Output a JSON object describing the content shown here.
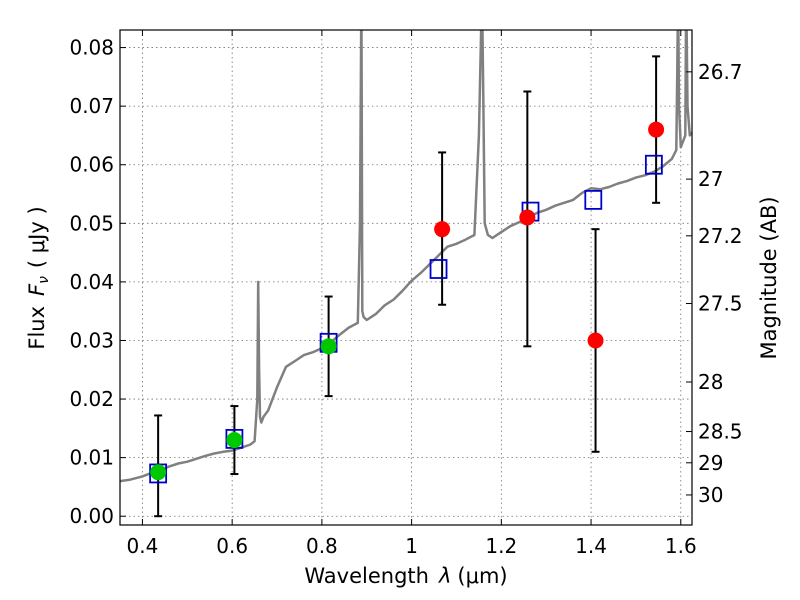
{
  "chart_data": {
    "type": "scatter",
    "xlabel_text": "Wavelength",
    "xlabel_symbol": "λ",
    "xlabel_unit": "(μm)",
    "ylabel_text": "Flux",
    "ylabel_symbol": "F",
    "ylabel_subscript": "ν",
    "ylabel_unit": "( μJy )",
    "y2label": "Magnitude (AB)",
    "xlim": [
      0.35,
      1.625
    ],
    "ylim": [
      -0.0015,
      0.083
    ],
    "grid": true,
    "x_ticks": [
      0.4,
      0.6,
      0.8,
      1.0,
      1.2,
      1.4,
      1.6
    ],
    "x_tick_labels": [
      "0.4",
      "0.6",
      "0.8",
      "1",
      "1.2",
      "1.4",
      "1.6"
    ],
    "y_ticks": [
      0.0,
      0.01,
      0.02,
      0.03,
      0.04,
      0.05,
      0.06,
      0.07,
      0.08
    ],
    "y_tick_labels": [
      "0.00",
      "0.01",
      "0.02",
      "0.03",
      "0.04",
      "0.05",
      "0.06",
      "0.07",
      "0.08"
    ],
    "y2_ticks": [
      {
        "label": "26.7",
        "mag": 26.7
      },
      {
        "label": "27",
        "mag": 27.0
      },
      {
        "label": "27.2",
        "mag": 27.2
      },
      {
        "label": "27.5",
        "mag": 27.5
      },
      {
        "label": "28",
        "mag": 28.0
      },
      {
        "label": "28.5",
        "mag": 28.5
      },
      {
        "label": "29",
        "mag": 29.0
      },
      {
        "label": "30",
        "mag": 30.0
      }
    ],
    "colors": {
      "spectrum": "#808080",
      "detection": "#00c800",
      "upper": "#ff0000",
      "model": "#0000cc",
      "errorbar": "#000000"
    },
    "series": [
      {
        "marker": "green-circle",
        "x": [
          0.435,
          0.605,
          0.815
        ],
        "y": [
          0.0075,
          0.013,
          0.029
        ],
        "err_low": [
          0.0075,
          0.0058,
          0.0085
        ],
        "err_high": [
          0.0097,
          0.0058,
          0.0085
        ]
      },
      {
        "marker": "red-circle",
        "x": [
          1.068,
          1.258,
          1.41,
          1.545
        ],
        "y": [
          0.049,
          0.051,
          0.03,
          0.066
        ],
        "err_low": [
          0.0129,
          0.022,
          0.019,
          0.0125
        ],
        "err_high": [
          0.0131,
          0.0215,
          0.019,
          0.0125
        ]
      },
      {
        "marker": "blue-open-square",
        "x": [
          0.435,
          0.605,
          0.815,
          1.06,
          1.265,
          1.405,
          1.54
        ],
        "y": [
          0.0073,
          0.0132,
          0.0296,
          0.0422,
          0.052,
          0.054,
          0.06
        ]
      },
      {
        "marker": "gray-line",
        "x": [
          0.35,
          0.37,
          0.4,
          0.42,
          0.44,
          0.46,
          0.48,
          0.5,
          0.52,
          0.54,
          0.56,
          0.58,
          0.6,
          0.62,
          0.64,
          0.65,
          0.656,
          0.658,
          0.66,
          0.662,
          0.665,
          0.67,
          0.68,
          0.7,
          0.72,
          0.74,
          0.76,
          0.78,
          0.8,
          0.82,
          0.84,
          0.86,
          0.88,
          0.885,
          0.888,
          0.89,
          0.893,
          0.9,
          0.92,
          0.94,
          0.96,
          0.98,
          1.0,
          1.02,
          1.04,
          1.06,
          1.08,
          1.1,
          1.12,
          1.14,
          1.15,
          1.157,
          1.16,
          1.163,
          1.17,
          1.18,
          1.2,
          1.22,
          1.24,
          1.26,
          1.28,
          1.3,
          1.32,
          1.34,
          1.36,
          1.38,
          1.4,
          1.42,
          1.44,
          1.46,
          1.48,
          1.5,
          1.52,
          1.54,
          1.56,
          1.58,
          1.59,
          1.592,
          1.594,
          1.596,
          1.6,
          1.61,
          1.612,
          1.615,
          1.62,
          1.625
        ],
        "y": [
          0.006,
          0.0062,
          0.0068,
          0.0074,
          0.0079,
          0.0085,
          0.009,
          0.0093,
          0.0098,
          0.0103,
          0.0107,
          0.011,
          0.0112,
          0.0117,
          0.0122,
          0.0128,
          0.02,
          0.04,
          0.025,
          0.017,
          0.016,
          0.017,
          0.018,
          0.022,
          0.0255,
          0.0265,
          0.0275,
          0.028,
          0.0287,
          0.0297,
          0.031,
          0.0322,
          0.033,
          0.05,
          0.09,
          0.035,
          0.034,
          0.0335,
          0.0345,
          0.036,
          0.037,
          0.0385,
          0.0402,
          0.0415,
          0.043,
          0.0445,
          0.046,
          0.0465,
          0.0472,
          0.048,
          0.065,
          0.09,
          0.07,
          0.05,
          0.048,
          0.0475,
          0.0485,
          0.0495,
          0.0502,
          0.051,
          0.0518,
          0.0523,
          0.053,
          0.0535,
          0.054,
          0.0552,
          0.056,
          0.0558,
          0.0562,
          0.0568,
          0.0572,
          0.0578,
          0.0582,
          0.0588,
          0.0597,
          0.061,
          0.0625,
          0.075,
          0.09,
          0.07,
          0.063,
          0.065,
          0.09,
          0.07,
          0.065,
          0.0655
        ]
      }
    ]
  }
}
